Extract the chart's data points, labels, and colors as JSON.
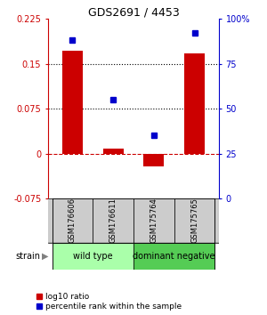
{
  "title": "GDS2691 / 4453",
  "samples": [
    "GSM176606",
    "GSM176611",
    "GSM175764",
    "GSM175765"
  ],
  "log10_ratio": [
    0.172,
    0.008,
    -0.022,
    0.168
  ],
  "percentile_rank": [
    88,
    55,
    35,
    92
  ],
  "ylim_left": [
    -0.075,
    0.225
  ],
  "ylim_right": [
    0,
    100
  ],
  "yticks_left": [
    -0.075,
    0,
    0.075,
    0.15,
    0.225
  ],
  "yticks_right": [
    0,
    25,
    50,
    75,
    100
  ],
  "ytick_labels_left": [
    "-0.075",
    "0",
    "0.075",
    "0.15",
    "0.225"
  ],
  "ytick_labels_right": [
    "0",
    "25",
    "50",
    "75",
    "100%"
  ],
  "hlines_dotted": [
    0.075,
    0.15
  ],
  "bar_color": "#cc0000",
  "dot_color": "#0000cc",
  "zero_line_color": "#cc0000",
  "groups": [
    {
      "label": "wild type",
      "samples": [
        0,
        1
      ],
      "color": "#aaffaa"
    },
    {
      "label": "dominant negative",
      "samples": [
        2,
        3
      ],
      "color": "#55cc55"
    }
  ],
  "sample_bg_color": "#cccccc",
  "strain_label": "strain",
  "legend_bar_label": "log10 ratio",
  "legend_dot_label": "percentile rank within the sample",
  "bar_width": 0.5,
  "x_positions": [
    0,
    1,
    2,
    3
  ]
}
